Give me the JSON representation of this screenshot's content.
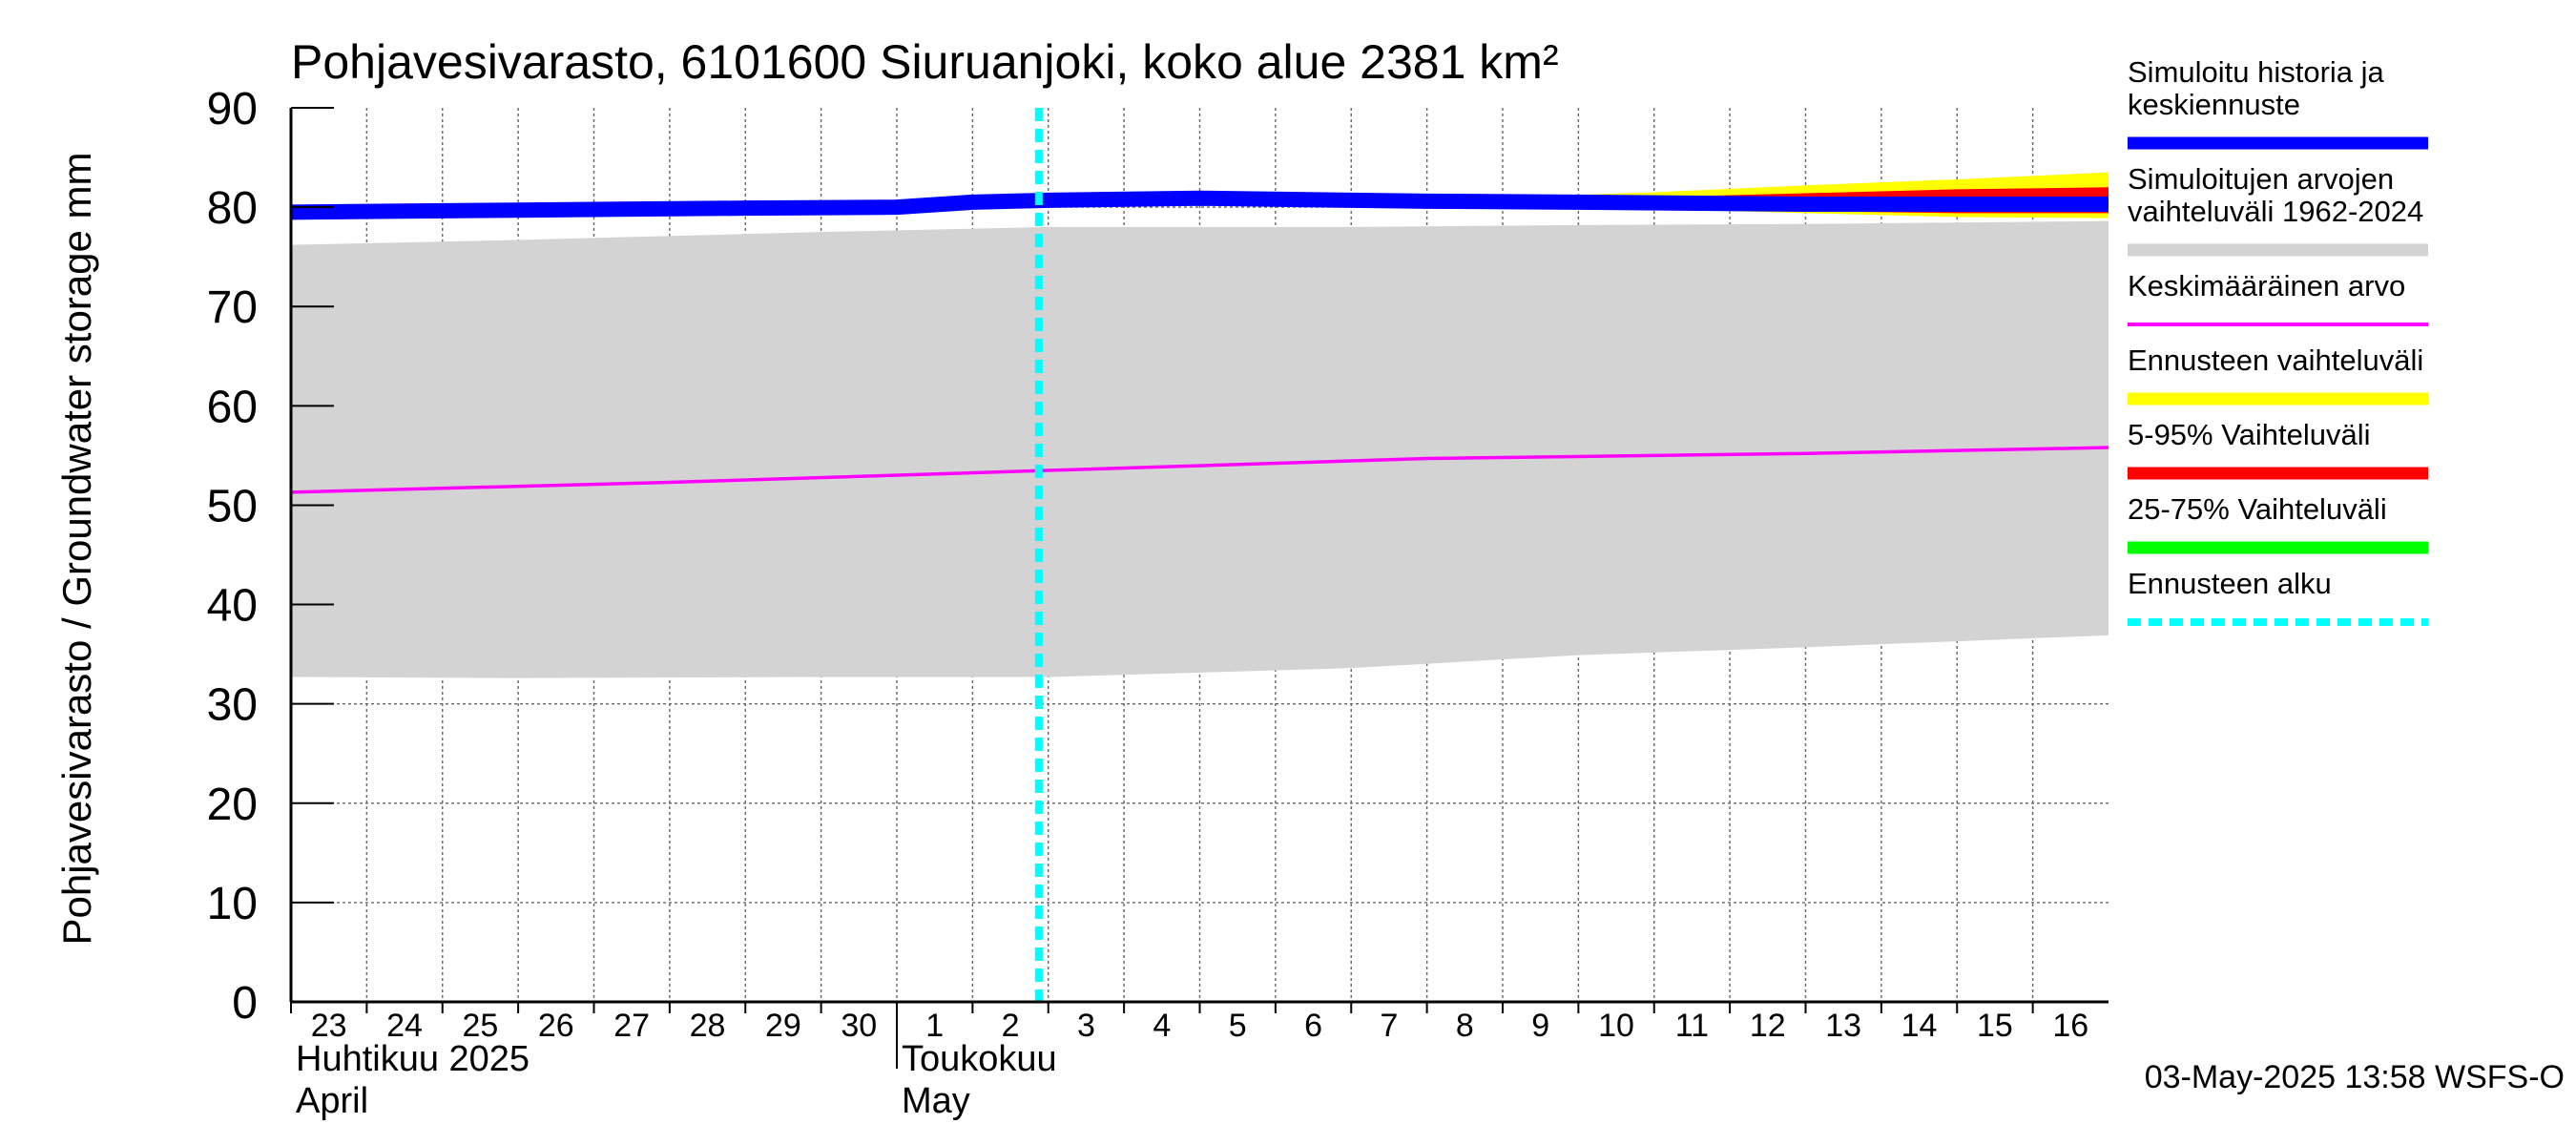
{
  "chart_data": {
    "type": "area",
    "title": "Pohjavesivarasto, 6101600 Siuruanjoki, koko alue 2381 km²",
    "ylabel": "Pohjavesivarasto / Groundwater storage   mm",
    "ylim": [
      0,
      90
    ],
    "y_ticks": [
      "0",
      "10",
      "20",
      "30",
      "40",
      "50",
      "60",
      "70",
      "80",
      "90"
    ],
    "grid": true,
    "legend_position": "right",
    "x_days": [
      "23",
      "24",
      "25",
      "26",
      "27",
      "28",
      "29",
      "30",
      "1",
      "2",
      "3",
      "4",
      "5",
      "6",
      "7",
      "8",
      "9",
      "10",
      "11",
      "12",
      "13",
      "14",
      "15",
      "16"
    ],
    "month_labels": [
      {
        "at": 0,
        "line1": "Huhtikuu  2025",
        "line2": "April"
      },
      {
        "at": 8,
        "line1": "Toukokuu",
        "line2": "May"
      }
    ],
    "x_start": "2025-04-23",
    "x_end": "2025-05-17",
    "forecast_start": "2025-05-02T21:00",
    "series": [
      {
        "name": "Simuloitu historia ja keskiennuste",
        "color": "#0000ff",
        "x": [
          "2025-04-23",
          "2025-04-26",
          "2025-04-29",
          "2025-05-01",
          "2025-05-02",
          "2025-05-03",
          "2025-05-05",
          "2025-05-08",
          "2025-05-10",
          "2025-05-13",
          "2025-05-17"
        ],
        "values": [
          79.5,
          79.7,
          79.9,
          80.0,
          80.5,
          80.7,
          80.9,
          80.6,
          80.5,
          80.3,
          80.3
        ]
      },
      {
        "name": "Keskimääräinen arvo",
        "color": "#ff00ff",
        "x": [
          "2025-04-23",
          "2025-04-28",
          "2025-05-03",
          "2025-05-08",
          "2025-05-13",
          "2025-05-17"
        ],
        "values": [
          51.3,
          52.3,
          53.5,
          54.7,
          55.2,
          55.8
        ]
      }
    ],
    "bands": [
      {
        "name": "Simuloitujen arvojen vaihteluväli 1962-2024",
        "color": "#d3d3d3",
        "x": [
          "2025-04-23",
          "2025-04-26",
          "2025-04-30",
          "2025-05-03",
          "2025-05-07",
          "2025-05-10",
          "2025-05-13",
          "2025-05-17"
        ],
        "upper": [
          76.2,
          76.7,
          77.5,
          78.0,
          78.0,
          78.2,
          78.3,
          78.6
        ],
        "lower": [
          32.7,
          32.6,
          32.7,
          32.7,
          33.6,
          34.9,
          35.7,
          36.9
        ]
      },
      {
        "name": "Ennusteen vaihteluväli",
        "color": "#ffff00",
        "x": [
          "2025-05-09",
          "2025-05-11",
          "2025-05-13",
          "2025-05-15",
          "2025-05-17"
        ],
        "upper": [
          81.0,
          81.5,
          82.2,
          82.8,
          83.5
        ],
        "lower": [
          80.5,
          79.8,
          79.4,
          79.0,
          78.9
        ]
      },
      {
        "name": "5-95% Vaihteluväli",
        "color": "#ff0000",
        "x": [
          "2025-05-09",
          "2025-05-11",
          "2025-05-13",
          "2025-05-15",
          "2025-05-17"
        ],
        "upper": [
          80.8,
          81.0,
          81.4,
          81.8,
          82.0
        ],
        "lower": [
          80.6,
          80.0,
          79.6,
          79.4,
          79.4
        ]
      },
      {
        "name": "25-75% Vaihteluväli",
        "color": "#00ff00",
        "x": [
          "2025-05-09",
          "2025-05-11",
          "2025-05-13",
          "2025-05-15",
          "2025-05-17"
        ],
        "upper": [
          80.7,
          80.6,
          80.6,
          80.7,
          80.8
        ],
        "lower": [
          80.6,
          80.3,
          80.2,
          80.1,
          80.1
        ]
      }
    ],
    "legend": [
      {
        "label": "Simuloitu historia ja keskiennuste",
        "color": "#0000ff",
        "style": "thick"
      },
      {
        "label": "Simuloitujen arvojen vaihteluväli 1962-2024",
        "color": "#d3d3d3",
        "style": "thick"
      },
      {
        "label": "Keskimääräinen arvo",
        "color": "#ff00ff",
        "style": "thin"
      },
      {
        "label": "Ennusteen vaihteluväli",
        "color": "#ffff00",
        "style": "thick"
      },
      {
        "label": "5-95% Vaihteluväli",
        "color": "#ff0000",
        "style": "thick"
      },
      {
        "label": "25-75% Vaihteluväli",
        "color": "#00ff00",
        "style": "thick"
      },
      {
        "label": "Ennusteen alku",
        "color": "#00ffff",
        "style": "dashed"
      }
    ],
    "footer": "03-May-2025 13:58 WSFS-O"
  }
}
